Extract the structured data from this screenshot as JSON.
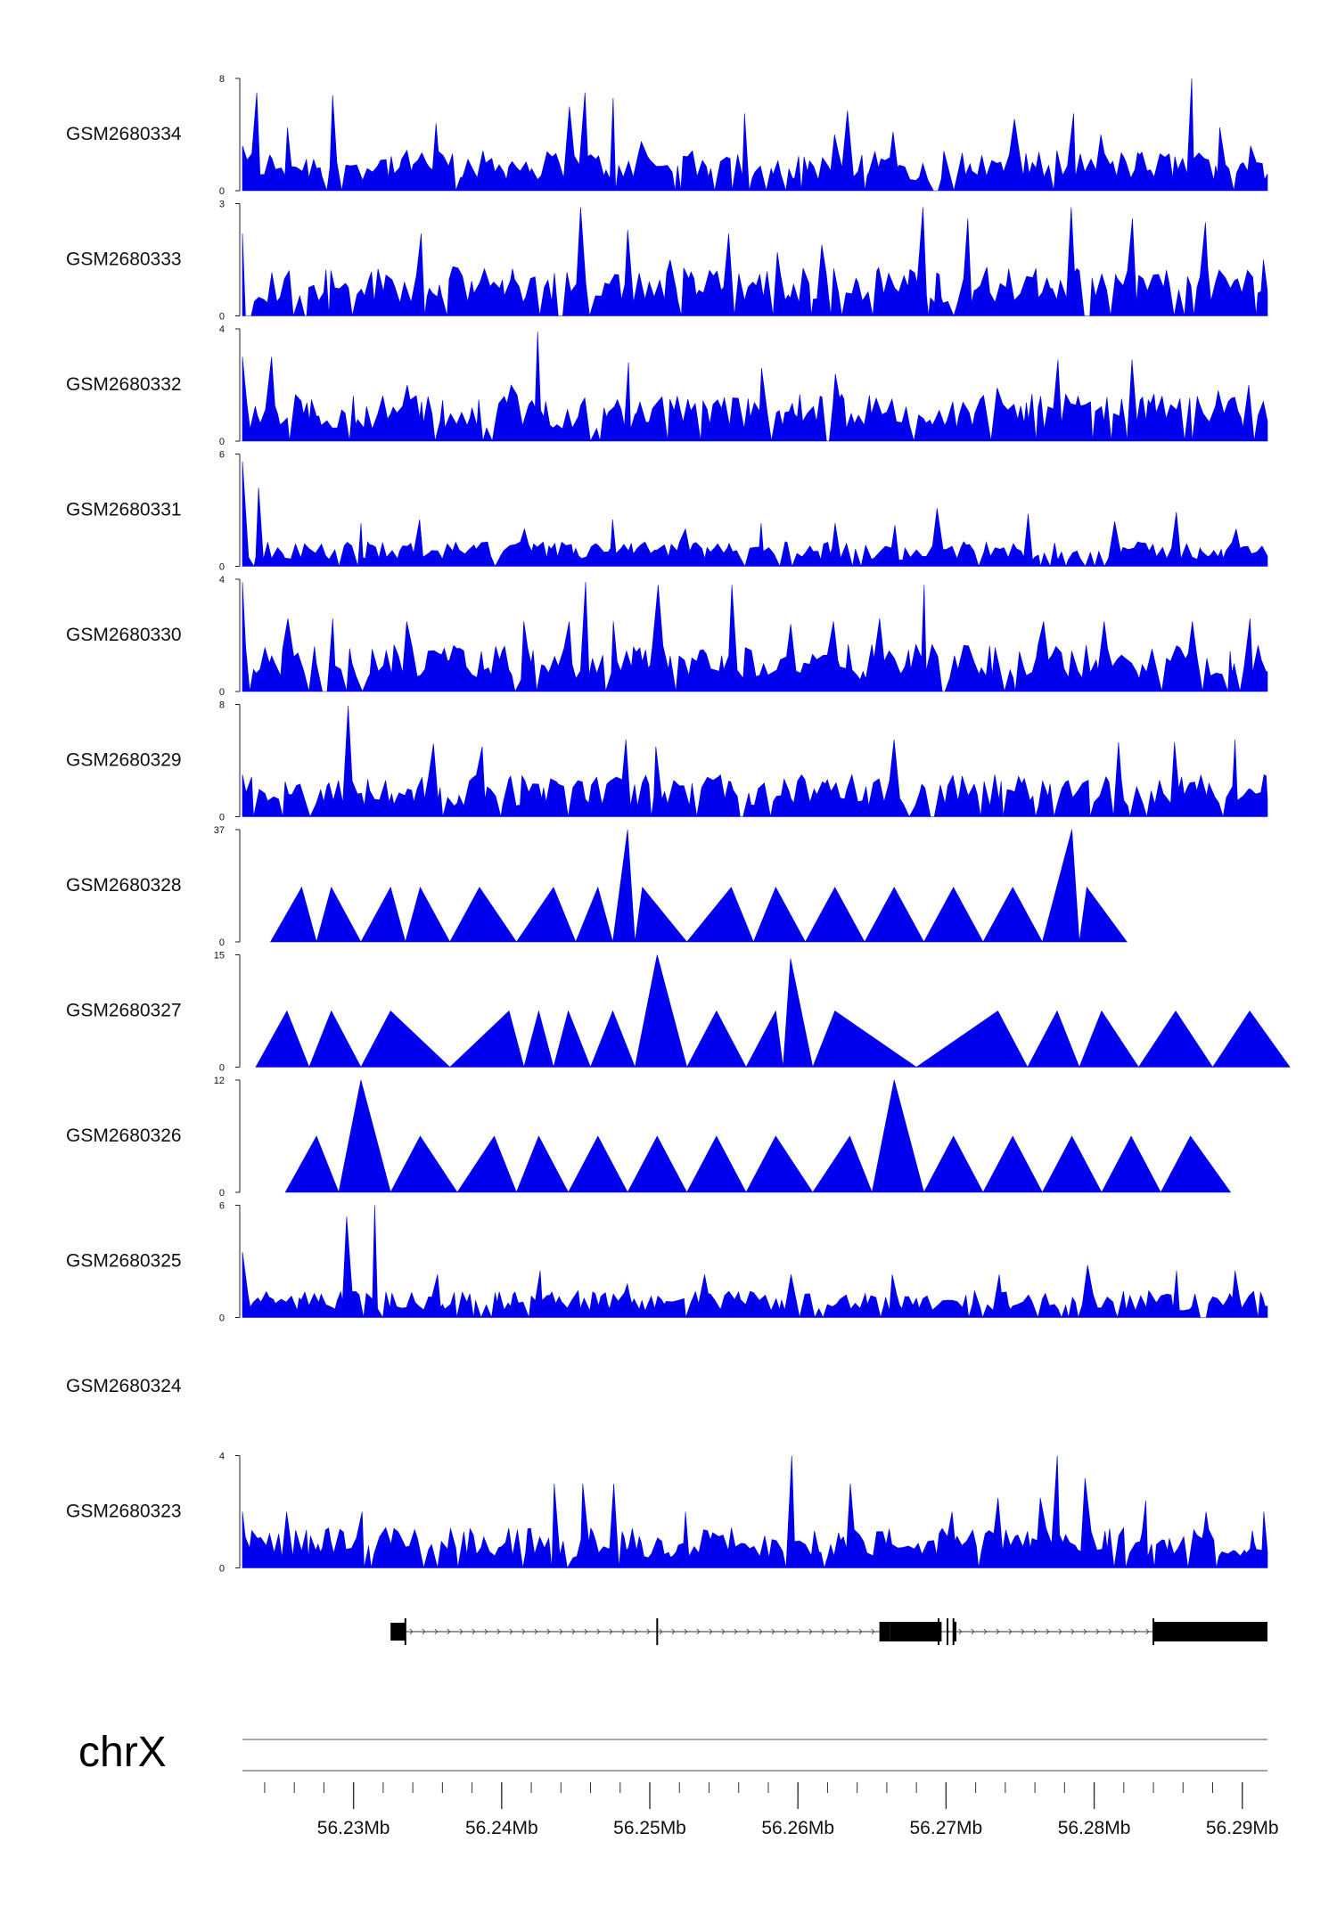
{
  "chart_data": {
    "type": "area",
    "title": "",
    "color": "#0000ee",
    "chromosome": "chrX",
    "x_unit": "Mb",
    "xlim": [
      56.2225,
      56.2917
    ],
    "x_ticks": [
      {
        "value": 56.23,
        "label": "56.23Mb"
      },
      {
        "value": 56.24,
        "label": "56.24Mb"
      },
      {
        "value": 56.25,
        "label": "56.25Mb"
      },
      {
        "value": 56.26,
        "label": "56.26Mb"
      },
      {
        "value": 56.27,
        "label": "56.27Mb"
      },
      {
        "value": 56.28,
        "label": "56.28Mb"
      },
      {
        "value": 56.29,
        "label": "56.29Mb"
      }
    ],
    "minor_tick_step": 0.002,
    "series": [
      {
        "name": "GSM2680334",
        "ylim": [
          0,
          8
        ],
        "y_tick_labels": [
          "0",
          "8"
        ],
        "peaks": [
          [
            56.2225,
            3.2
          ],
          [
            56.2235,
            7
          ],
          [
            56.2255,
            4.5
          ],
          [
            56.2285,
            6.8
          ],
          [
            56.2355,
            4.8
          ],
          [
            56.2445,
            6
          ],
          [
            56.2455,
            7
          ],
          [
            56.2475,
            6.6
          ],
          [
            56.2495,
            3.5
          ],
          [
            56.2565,
            5.5
          ],
          [
            56.2625,
            4
          ],
          [
            56.2635,
            5.7
          ],
          [
            56.2665,
            4.2
          ],
          [
            56.2745,
            5.1
          ],
          [
            56.2785,
            5.5
          ],
          [
            56.2805,
            4
          ],
          [
            56.2865,
            8.1
          ],
          [
            56.2885,
            4.5
          ],
          [
            56.2905,
            3.2
          ]
        ],
        "density": 2.4
      },
      {
        "name": "GSM2680333",
        "ylim": [
          0,
          3
        ],
        "y_tick_labels": [
          "0",
          "3"
        ],
        "peaks": [
          [
            56.2225,
            2.2
          ],
          [
            56.2345,
            2.2
          ],
          [
            56.2455,
            2.9
          ],
          [
            56.2485,
            2.3
          ],
          [
            56.2515,
            1.5
          ],
          [
            56.2555,
            2.2
          ],
          [
            56.2585,
            1.7
          ],
          [
            56.2615,
            1.9
          ],
          [
            56.2685,
            2.9
          ],
          [
            56.2715,
            2.6
          ],
          [
            56.2785,
            2.9
          ],
          [
            56.2825,
            2.6
          ],
          [
            56.2875,
            2.5
          ],
          [
            56.2915,
            1.5
          ]
        ],
        "density": 1.1
      },
      {
        "name": "GSM2680332",
        "ylim": [
          0,
          4
        ],
        "y_tick_labels": [
          "0",
          "4"
        ],
        "peaks": [
          [
            56.2225,
            3
          ],
          [
            56.2245,
            3
          ],
          [
            56.2335,
            2
          ],
          [
            56.2405,
            2
          ],
          [
            56.2425,
            3.9
          ],
          [
            56.2485,
            2.8
          ],
          [
            56.2575,
            2.6
          ],
          [
            56.2625,
            2.4
          ],
          [
            56.2665,
            1.5
          ],
          [
            56.2735,
            1.9
          ],
          [
            56.2775,
            2.9
          ],
          [
            56.2825,
            2.9
          ],
          [
            56.2885,
            1.8
          ],
          [
            56.2905,
            2
          ]
        ],
        "density": 1.4
      },
      {
        "name": "GSM2680331",
        "ylim": [
          0,
          6
        ],
        "y_tick_labels": [
          "0",
          "6"
        ],
        "peaks": [
          [
            56.2225,
            5.6
          ],
          [
            56.2235,
            4.2
          ],
          [
            56.2305,
            2.3
          ],
          [
            56.2345,
            2.5
          ],
          [
            56.2415,
            2
          ],
          [
            56.2475,
            2.5
          ],
          [
            56.2525,
            2
          ],
          [
            56.2575,
            2.3
          ],
          [
            56.2625,
            2.3
          ],
          [
            56.2665,
            2.2
          ],
          [
            56.2695,
            3.1
          ],
          [
            56.2755,
            2.8
          ],
          [
            56.2815,
            2.4
          ],
          [
            56.2855,
            2.9
          ],
          [
            56.2895,
            2
          ]
        ],
        "density": 1.1
      },
      {
        "name": "GSM2680330",
        "ylim": [
          0,
          4
        ],
        "y_tick_labels": [
          "0",
          "4"
        ],
        "peaks": [
          [
            56.2225,
            3.9
          ],
          [
            56.2255,
            2.6
          ],
          [
            56.2285,
            2.6
          ],
          [
            56.2335,
            2.5
          ],
          [
            56.2415,
            2.5
          ],
          [
            56.2445,
            2.5
          ],
          [
            56.2455,
            3.9
          ],
          [
            56.2475,
            2.5
          ],
          [
            56.2505,
            3.8
          ],
          [
            56.2555,
            3.8
          ],
          [
            56.2595,
            2.4
          ],
          [
            56.2625,
            2.5
          ],
          [
            56.2655,
            2.6
          ],
          [
            56.2685,
            3.8
          ],
          [
            56.2765,
            2.5
          ],
          [
            56.2805,
            2.5
          ],
          [
            56.2865,
            2.5
          ],
          [
            56.2905,
            2.6
          ]
        ],
        "density": 1.4
      },
      {
        "name": "GSM2680329",
        "ylim": [
          0,
          8
        ],
        "y_tick_labels": [
          "0",
          "8"
        ],
        "peaks": [
          [
            56.2225,
            3
          ],
          [
            56.2255,
            2.5
          ],
          [
            56.2295,
            7.9
          ],
          [
            56.2355,
            5.2
          ],
          [
            56.2385,
            5
          ],
          [
            56.2485,
            5.5
          ],
          [
            56.2505,
            5
          ],
          [
            56.2555,
            2.5
          ],
          [
            56.2615,
            2.5
          ],
          [
            56.2665,
            5.5
          ],
          [
            56.2725,
            2.5
          ],
          [
            56.2795,
            2.6
          ],
          [
            56.2815,
            5.3
          ],
          [
            56.2855,
            5.3
          ],
          [
            56.2895,
            5.5
          ],
          [
            56.2915,
            3
          ]
        ],
        "density": 2.5
      },
      {
        "name": "GSM2680328",
        "ylim": [
          0,
          37
        ],
        "y_tick_labels": [
          "0",
          "37"
        ],
        "peaks": [
          [
            56.2265,
            18
          ],
          [
            56.2285,
            18
          ],
          [
            56.2325,
            18
          ],
          [
            56.2345,
            18
          ],
          [
            56.2385,
            18
          ],
          [
            56.2435,
            18
          ],
          [
            56.2465,
            18
          ],
          [
            56.2485,
            37
          ],
          [
            56.2495,
            18
          ],
          [
            56.2555,
            18
          ],
          [
            56.2585,
            18
          ],
          [
            56.2625,
            18
          ],
          [
            56.2665,
            18
          ],
          [
            56.2705,
            18
          ],
          [
            56.2745,
            18
          ],
          [
            56.2785,
            37
          ],
          [
            56.2795,
            18
          ]
        ],
        "density": 0
      },
      {
        "name": "GSM2680327",
        "ylim": [
          0,
          15
        ],
        "y_tick_labels": [
          "0",
          "15"
        ],
        "peaks": [
          [
            56.2255,
            7.5
          ],
          [
            56.2285,
            7.5
          ],
          [
            56.2325,
            7.5
          ],
          [
            56.2405,
            7.5
          ],
          [
            56.2425,
            7.5
          ],
          [
            56.2445,
            7.5
          ],
          [
            56.2475,
            7.5
          ],
          [
            56.2505,
            15
          ],
          [
            56.2545,
            7.5
          ],
          [
            56.2585,
            7.5
          ],
          [
            56.2595,
            14.5
          ],
          [
            56.2625,
            7.5
          ],
          [
            56.2735,
            7.5
          ],
          [
            56.2775,
            7.5
          ],
          [
            56.2805,
            7.5
          ],
          [
            56.2855,
            7.5
          ],
          [
            56.2905,
            7.5
          ]
        ],
        "density": 0
      },
      {
        "name": "GSM2680326",
        "ylim": [
          0,
          12
        ],
        "y_tick_labels": [
          "0",
          "12"
        ],
        "peaks": [
          [
            56.2275,
            6
          ],
          [
            56.2305,
            12
          ],
          [
            56.2345,
            6
          ],
          [
            56.2395,
            6
          ],
          [
            56.2425,
            6
          ],
          [
            56.2465,
            6
          ],
          [
            56.2505,
            6
          ],
          [
            56.2545,
            6
          ],
          [
            56.2585,
            6
          ],
          [
            56.2635,
            6
          ],
          [
            56.2665,
            12
          ],
          [
            56.2705,
            6
          ],
          [
            56.2745,
            6
          ],
          [
            56.2785,
            6
          ],
          [
            56.2825,
            6
          ],
          [
            56.2865,
            6
          ]
        ],
        "density": 0
      },
      {
        "name": "GSM2680325",
        "ylim": [
          0,
          6
        ],
        "y_tick_labels": [
          "0",
          "6"
        ],
        "peaks": [
          [
            56.2225,
            3.5
          ],
          [
            56.2295,
            5.4
          ],
          [
            56.2315,
            6
          ],
          [
            56.2355,
            2.3
          ],
          [
            56.2425,
            2.5
          ],
          [
            56.2485,
            1.8
          ],
          [
            56.2535,
            2.3
          ],
          [
            56.2595,
            2.3
          ],
          [
            56.2665,
            2.3
          ],
          [
            56.2735,
            2.3
          ],
          [
            56.2795,
            2.8
          ],
          [
            56.2855,
            2.5
          ],
          [
            56.2895,
            2.5
          ]
        ],
        "density": 1.2
      },
      {
        "name": "GSM2680324",
        "ylim": null,
        "y_tick_labels": [],
        "peaks": [],
        "density": 0
      },
      {
        "name": "GSM2680323",
        "ylim": [
          0,
          4
        ],
        "y_tick_labels": [
          "0",
          "4"
        ],
        "peaks": [
          [
            56.2225,
            2
          ],
          [
            56.2255,
            2
          ],
          [
            56.2305,
            2
          ],
          [
            56.2435,
            3
          ],
          [
            56.2455,
            3
          ],
          [
            56.2475,
            3
          ],
          [
            56.2525,
            2
          ],
          [
            56.2595,
            4
          ],
          [
            56.2635,
            3
          ],
          [
            56.2705,
            2
          ],
          [
            56.2735,
            2.5
          ],
          [
            56.2765,
            2.5
          ],
          [
            56.2775,
            4
          ],
          [
            56.2795,
            3.2
          ],
          [
            56.2835,
            2.4
          ],
          [
            56.2875,
            2
          ],
          [
            56.2915,
            2
          ]
        ],
        "density": 1.2
      }
    ],
    "gene": {
      "thin_exons": [
        [
          56.2325,
          56.2335
        ]
      ],
      "thick_exons": [
        [
          56.2655,
          56.2662
        ],
        [
          56.2662,
          56.2697
        ],
        [
          56.2705,
          56.2707
        ],
        [
          56.284,
          56.2917
        ]
      ],
      "markers": [
        56.2335,
        56.2505,
        56.2695,
        56.2701,
        56.2705,
        56.284
      ],
      "intron_range": [
        56.2335,
        56.284
      ]
    }
  }
}
